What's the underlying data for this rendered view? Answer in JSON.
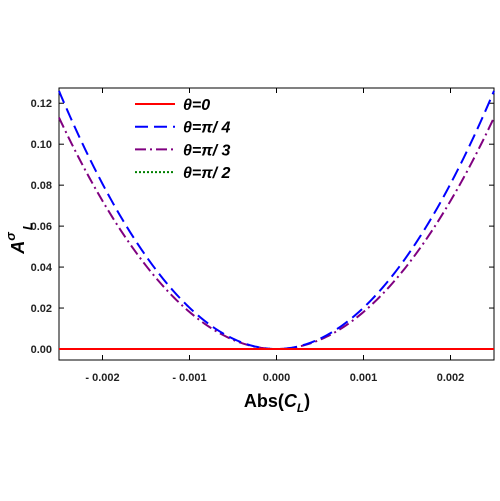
{
  "chart_data": {
    "type": "line",
    "xlabel": "Abs(C_L)",
    "xlabel_parts": {
      "main": "Abs(",
      "var": "C",
      "sub": "L",
      "close": ")"
    },
    "ylabel": "A^σ_L",
    "ylabel_parts": {
      "main": "A",
      "sup": "σ",
      "sub": "L"
    },
    "xlim": [
      -0.0025,
      0.0025
    ],
    "ylim": [
      0,
      0.125
    ],
    "x_ticks": [
      -0.002,
      -0.001,
      0.0,
      0.001,
      0.002
    ],
    "x_tick_labels": [
      "- 0.002",
      "- 0.001",
      "0.000",
      "0.001",
      "0.002"
    ],
    "y_ticks": [
      0.0,
      0.02,
      0.04,
      0.06,
      0.08,
      0.1,
      0.12
    ],
    "y_tick_labels": [
      "0.00",
      "0.02",
      "0.04",
      "0.06",
      "0.08",
      "0.10",
      "0.12"
    ],
    "grid": false,
    "legend_position": "top-left",
    "series": [
      {
        "name": "θ=0",
        "color": "#ff0000",
        "style": "solid",
        "x": [
          -0.0025,
          -0.002,
          -0.0015,
          -0.001,
          -0.0005,
          0.0,
          0.0005,
          0.001,
          0.0015,
          0.002,
          0.0025
        ],
        "y": [
          0,
          0,
          0,
          0,
          0,
          0,
          0,
          0,
          0,
          0,
          0
        ]
      },
      {
        "name": "θ=π/ 4",
        "color": "#0000ff",
        "style": "dashed",
        "x": [
          -0.0025,
          -0.002,
          -0.0015,
          -0.001,
          -0.0005,
          0.0,
          0.0005,
          0.001,
          0.0015,
          0.002,
          0.0025
        ],
        "y": [
          0.126,
          0.0806,
          0.0454,
          0.0202,
          0.005,
          0.0,
          0.005,
          0.0202,
          0.0454,
          0.0806,
          0.126
        ]
      },
      {
        "name": "θ=π/ 3",
        "color": "#800080",
        "style": "dashdot",
        "x": [
          -0.0025,
          -0.002,
          -0.0015,
          -0.001,
          -0.0005,
          0.0,
          0.0005,
          0.001,
          0.0015,
          0.002,
          0.0025
        ],
        "y": [
          0.113,
          0.0723,
          0.0407,
          0.0181,
          0.0045,
          0.0,
          0.0045,
          0.0181,
          0.0407,
          0.0723,
          0.113
        ]
      },
      {
        "name": "θ=π/ 2",
        "color": "#008000",
        "style": "dotted",
        "x": [
          -0.0025,
          -0.002,
          -0.0015,
          -0.001,
          -0.0005,
          0.0,
          0.0005,
          0.001,
          0.0015,
          0.002,
          0.0025
        ],
        "y": [
          0,
          0,
          0,
          0,
          0,
          0,
          0,
          0,
          0,
          0,
          0
        ]
      }
    ]
  }
}
